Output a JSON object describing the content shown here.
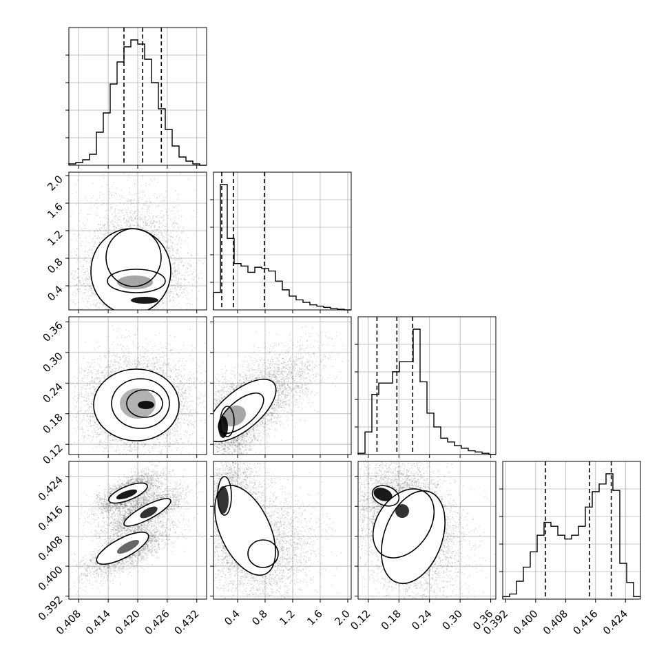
{
  "chart_data": {
    "type": "corner",
    "parameters": [
      {
        "range": [
          0.406,
          0.434
        ],
        "ticks": [
          "0.408",
          "0.414",
          "0.420",
          "0.426",
          "0.432"
        ],
        "tick_values": [
          0.408,
          0.414,
          0.42,
          0.426,
          0.432
        ],
        "quantiles": [
          0.4172,
          0.421,
          0.4248
        ]
      },
      {
        "range": [
          0.05,
          2.05
        ],
        "ticks": [
          "0.4",
          "0.8",
          "1.2",
          "1.6",
          "2.0"
        ],
        "tick_values": [
          0.4,
          0.8,
          1.2,
          1.6,
          2.0
        ],
        "quantiles": [
          0.17,
          0.34,
          0.79
        ]
      },
      {
        "range": [
          0.1,
          0.37
        ],
        "ticks": [
          "0.12",
          "0.18",
          "0.24",
          "0.30",
          "0.36"
        ],
        "tick_values": [
          0.12,
          0.18,
          0.24,
          0.3,
          0.36
        ],
        "quantiles": [
          0.137,
          0.176,
          0.207
        ]
      },
      {
        "range": [
          0.3912,
          0.428
        ],
        "ticks": [
          "0.392",
          "0.400",
          "0.408",
          "0.416",
          "0.424"
        ],
        "tick_values": [
          0.392,
          0.4,
          0.408,
          0.416,
          0.424
        ],
        "quantiles": [
          0.4026,
          0.4144,
          0.4202
        ]
      }
    ],
    "histograms": [
      {
        "heights": [
          1,
          2,
          4,
          8,
          24,
          38,
          59,
          75,
          86,
          91,
          88,
          77,
          60,
          41,
          26,
          14,
          6,
          3,
          1,
          0
        ]
      },
      {
        "heights": [
          0.14,
          1.0,
          0.57,
          0.37,
          0.35,
          0.3,
          0.34,
          0.33,
          0.31,
          0.23,
          0.16,
          0.11,
          0.08,
          0.06,
          0.04,
          0.03,
          0.02,
          0.01,
          0.005,
          0
        ]
      },
      {
        "heights": [
          0.01,
          0.18,
          0.48,
          0.57,
          0.57,
          0.66,
          0.74,
          0.74,
          1.0,
          0.58,
          0.33,
          0.22,
          0.13,
          0.1,
          0.07,
          0.05,
          0.03,
          0.02,
          0.01,
          0
        ]
      },
      {
        "heights": [
          0.02,
          0.04,
          0.14,
          0.25,
          0.37,
          0.5,
          0.6,
          0.57,
          0.5,
          0.47,
          0.5,
          0.57,
          0.72,
          0.84,
          0.9,
          0.98,
          0.85,
          0.28,
          0.13,
          0.02
        ]
      }
    ],
    "grid": true,
    "legend": "none",
    "colors": {
      "samples": "#000000",
      "lines": "#000000",
      "grid": "#b0b0b0"
    }
  }
}
